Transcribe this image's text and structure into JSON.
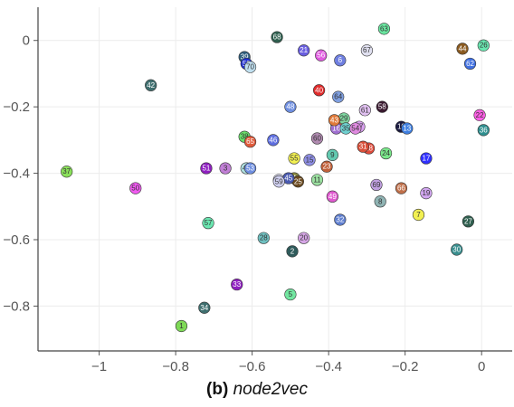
{
  "caption": {
    "label": "(b)",
    "method": "node2vec"
  },
  "chart_data": {
    "type": "scatter",
    "xlabel": "",
    "ylabel": "",
    "xlim": [
      -1.16,
      0.08
    ],
    "ylim": [
      -0.935,
      0.1
    ],
    "x_ticks": [
      -1,
      -0.8,
      -0.6,
      -0.4,
      -0.2,
      0
    ],
    "x_tick_labels": [
      "−1",
      "−0.8",
      "−0.6",
      "−0.4",
      "−0.2",
      "0"
    ],
    "y_ticks": [
      0,
      -0.2,
      -0.4,
      -0.6,
      -0.8
    ],
    "y_tick_labels": [
      "0",
      "−0.2",
      "−0.4",
      "−0.6",
      "−0.8"
    ],
    "grid": true,
    "points": [
      {
        "id": "1",
        "x": -0.785,
        "y": -0.86,
        "color": "#7ed957"
      },
      {
        "id": "2",
        "x": -0.495,
        "y": -0.635,
        "color": "#2f5b5b"
      },
      {
        "id": "3",
        "x": -0.67,
        "y": -0.385,
        "color": "#c17fd6"
      },
      {
        "id": "4",
        "x": -0.49,
        "y": -0.415,
        "color": "#8a8a40"
      },
      {
        "id": "5",
        "x": -0.5,
        "y": -0.765,
        "color": "#72e6a0"
      },
      {
        "id": "6",
        "x": -0.37,
        "y": -0.06,
        "color": "#6f7fe0"
      },
      {
        "id": "7",
        "x": -0.165,
        "y": -0.525,
        "color": "#f2f052"
      },
      {
        "id": "8",
        "x": -0.265,
        "y": -0.485,
        "color": "#8fb3b3"
      },
      {
        "id": "9",
        "x": -0.39,
        "y": -0.345,
        "color": "#63c9b0"
      },
      {
        "id": "10",
        "x": -0.21,
        "y": -0.26,
        "color": "#1a1a40"
      },
      {
        "id": "11",
        "x": -0.43,
        "y": -0.42,
        "color": "#9be0a0"
      },
      {
        "id": "12",
        "x": -0.53,
        "y": -0.42,
        "color": "#d9d9f2"
      },
      {
        "id": "13",
        "x": -0.195,
        "y": -0.265,
        "color": "#3f7fe0"
      },
      {
        "id": "14",
        "x": -0.38,
        "y": -0.25,
        "color": "#f07a5a"
      },
      {
        "id": "15",
        "x": -0.45,
        "y": -0.36,
        "color": "#8f8fe6"
      },
      {
        "id": "16",
        "x": -0.38,
        "y": -0.265,
        "color": "#9f6fd0"
      },
      {
        "id": "17",
        "x": -0.145,
        "y": -0.355,
        "color": "#3030ff"
      },
      {
        "id": "18",
        "x": -0.295,
        "y": -0.325,
        "color": "#e04a3a"
      },
      {
        "id": "19",
        "x": -0.145,
        "y": -0.46,
        "color": "#d2a6f0"
      },
      {
        "id": "20",
        "x": -0.465,
        "y": -0.595,
        "color": "#d6a6e6"
      },
      {
        "id": "21",
        "x": -0.465,
        "y": -0.03,
        "color": "#6a5fe0"
      },
      {
        "id": "22",
        "x": -0.005,
        "y": -0.225,
        "color": "#ff5fe6"
      },
      {
        "id": "23",
        "x": -0.405,
        "y": -0.38,
        "color": "#c0603a"
      },
      {
        "id": "24",
        "x": -0.25,
        "y": -0.34,
        "color": "#7ae68a"
      },
      {
        "id": "25",
        "x": -0.48,
        "y": -0.425,
        "color": "#6a4a20"
      },
      {
        "id": "26",
        "x": 0.005,
        "y": -0.015,
        "color": "#6ae6b0"
      },
      {
        "id": "27",
        "x": -0.035,
        "y": -0.545,
        "color": "#2f5f4f"
      },
      {
        "id": "28",
        "x": -0.57,
        "y": -0.595,
        "color": "#6fc0c0"
      },
      {
        "id": "29",
        "x": -0.36,
        "y": -0.235,
        "color": "#7fd6a0"
      },
      {
        "id": "30",
        "x": -0.065,
        "y": -0.63,
        "color": "#3a8f8f"
      },
      {
        "id": "31",
        "x": -0.31,
        "y": -0.32,
        "color": "#d9503a"
      },
      {
        "id": "32",
        "x": -0.37,
        "y": -0.54,
        "color": "#5f7fd0"
      },
      {
        "id": "33",
        "x": -0.64,
        "y": -0.735,
        "color": "#8f20c0"
      },
      {
        "id": "34",
        "x": -0.725,
        "y": -0.805,
        "color": "#3f6f6f"
      },
      {
        "id": "35",
        "x": -0.355,
        "y": -0.265,
        "color": "#6fd0d0"
      },
      {
        "id": "36",
        "x": 0.005,
        "y": -0.27,
        "color": "#2f8f8f"
      },
      {
        "id": "37",
        "x": -1.085,
        "y": -0.395,
        "color": "#8ae05a"
      },
      {
        "id": "38",
        "x": -0.62,
        "y": -0.29,
        "color": "#6ae06a"
      },
      {
        "id": "39",
        "x": -0.62,
        "y": -0.05,
        "color": "#2f5f7f"
      },
      {
        "id": "40",
        "x": -0.425,
        "y": -0.15,
        "color": "#e02a2a"
      },
      {
        "id": "41",
        "x": -0.615,
        "y": -0.385,
        "color": "#b0e0e0"
      },
      {
        "id": "42",
        "x": -0.865,
        "y": -0.135,
        "color": "#3f6f6f"
      },
      {
        "id": "43",
        "x": -0.385,
        "y": -0.24,
        "color": "#e07a3a"
      },
      {
        "id": "44",
        "x": -0.05,
        "y": -0.025,
        "color": "#8a5a20"
      },
      {
        "id": "45",
        "x": -0.505,
        "y": -0.415,
        "color": "#4a5ab0"
      },
      {
        "id": "46",
        "x": -0.545,
        "y": -0.3,
        "color": "#5f6fe0"
      },
      {
        "id": "47",
        "x": -0.32,
        "y": -0.26,
        "color": "#d9a0f0"
      },
      {
        "id": "48",
        "x": -0.5,
        "y": -0.2,
        "color": "#6f8fe0"
      },
      {
        "id": "49",
        "x": -0.39,
        "y": -0.47,
        "color": "#e05ad0"
      },
      {
        "id": "50",
        "x": -0.905,
        "y": -0.445,
        "color": "#f05af0"
      },
      {
        "id": "51",
        "x": -0.72,
        "y": -0.385,
        "color": "#8f20c0"
      },
      {
        "id": "52",
        "x": -0.615,
        "y": -0.07,
        "color": "#2030d0"
      },
      {
        "id": "53",
        "x": -0.605,
        "y": -0.385,
        "color": "#6f8fe0"
      },
      {
        "id": "54",
        "x": -0.33,
        "y": -0.265,
        "color": "#e08ae0"
      },
      {
        "id": "55",
        "x": -0.49,
        "y": -0.355,
        "color": "#f2f052"
      },
      {
        "id": "56",
        "x": -0.42,
        "y": -0.045,
        "color": "#e05ae0"
      },
      {
        "id": "57",
        "x": -0.715,
        "y": -0.55,
        "color": "#6ae6b0"
      },
      {
        "id": "58",
        "x": -0.26,
        "y": -0.2,
        "color": "#3a1a30"
      },
      {
        "id": "59",
        "x": -0.53,
        "y": -0.425,
        "color": "#d0d0f0"
      },
      {
        "id": "60",
        "x": -0.43,
        "y": -0.295,
        "color": "#b08ab0"
      },
      {
        "id": "61",
        "x": -0.305,
        "y": -0.21,
        "color": "#e0c0f0"
      },
      {
        "id": "62",
        "x": -0.03,
        "y": -0.07,
        "color": "#3f6fe0"
      },
      {
        "id": "63",
        "x": -0.255,
        "y": 0.035,
        "color": "#6ae6a0"
      },
      {
        "id": "64",
        "x": -0.375,
        "y": -0.17,
        "color": "#7f9fe0"
      },
      {
        "id": "65",
        "x": -0.605,
        "y": -0.305,
        "color": "#e05a3a"
      },
      {
        "id": "66",
        "x": -0.21,
        "y": -0.445,
        "color": "#c0704a"
      },
      {
        "id": "67",
        "x": -0.3,
        "y": -0.03,
        "color": "#e0e0f0"
      },
      {
        "id": "68",
        "x": -0.535,
        "y": 0.01,
        "color": "#2f5f4f"
      },
      {
        "id": "69",
        "x": -0.275,
        "y": -0.435,
        "color": "#c0a0e0"
      },
      {
        "id": "70",
        "x": -0.605,
        "y": -0.08,
        "color": "#c0e0f0"
      }
    ]
  }
}
